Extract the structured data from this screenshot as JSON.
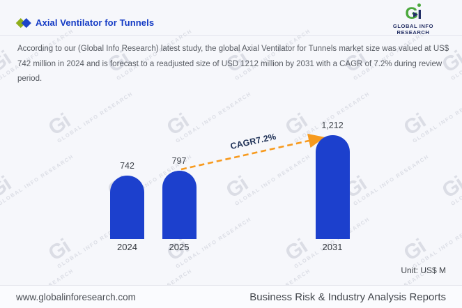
{
  "header": {
    "title": "Axial Ventilator for Tunnels",
    "logo": {
      "gi_g": "G",
      "gi_i": "ı",
      "wordmark": "GLOBAL INFO RESEARCH"
    }
  },
  "description": {
    "lines": [
      "According to our (Global Info Research) latest study, the global Axial Ventilator for Tunnels market size was valued at US$",
      "742 million in 2024 and is forecast to a readjusted size of USD 1212 million by 2031 with a CAGR of 7.2% during review",
      "period."
    ]
  },
  "chart_data": {
    "type": "bar",
    "categories": [
      "2024",
      "2025",
      "2031"
    ],
    "values": [
      742,
      797,
      1212
    ],
    "value_labels": [
      "742",
      "797",
      "1,212"
    ],
    "series_name": "Axial Ventilator for Tunnels market size (US$ M)",
    "cagr_label": "CAGR7.2%",
    "unit_label": "Unit: US$ M",
    "ylim": [
      0,
      1350
    ],
    "grid": false,
    "legend": "none",
    "bar_color": "#1c40cd",
    "arrow_color": "#f79a1e"
  },
  "watermark": {
    "gi": "Gi",
    "text": "GLOBAL INFO RESEARCH"
  },
  "footer": {
    "website": "www.globalinforesearch.com",
    "tagline": "Business Risk & Industry Analysis Reports"
  }
}
